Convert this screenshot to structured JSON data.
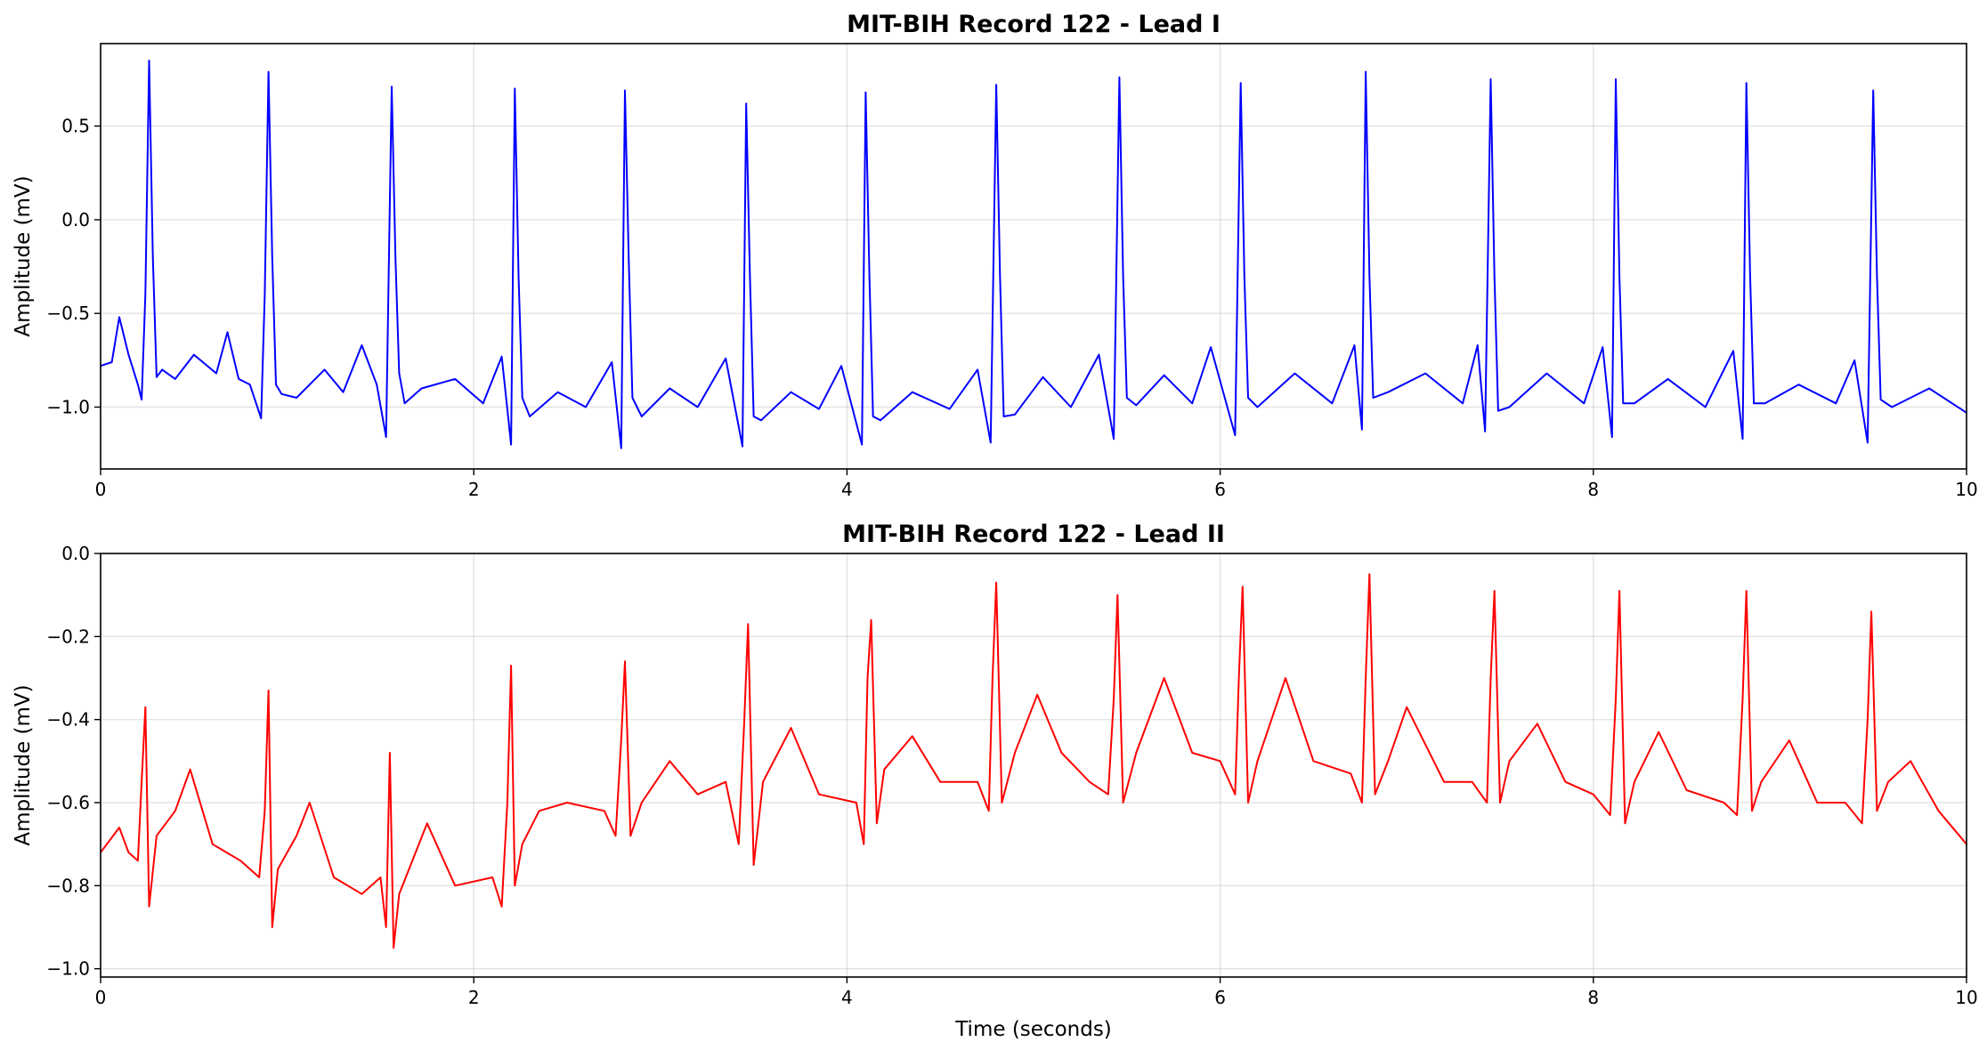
{
  "chart_data": [
    {
      "type": "line",
      "title": "MIT-BIH Record 122 - Lead I",
      "xlabel": "",
      "ylabel": "Amplitude (mV)",
      "xlim": [
        0,
        10
      ],
      "ylim": [
        -1.33,
        0.94
      ],
      "xticks": [
        0,
        2,
        4,
        6,
        8,
        10
      ],
      "xtick_labels": [
        "0",
        "2",
        "4",
        "6",
        "8",
        "10"
      ],
      "yticks": [
        -1.0,
        -0.5,
        0.0,
        0.5
      ],
      "ytick_labels": [
        "−1.0",
        "−0.5",
        "0.0",
        "0.5"
      ],
      "grid": true,
      "color": "#0000ff",
      "series": [
        {
          "x": [
            0.0,
            0.06,
            0.1,
            0.15,
            0.2,
            0.22,
            0.24,
            0.26,
            0.28,
            0.3,
            0.33,
            0.4,
            0.5,
            0.62,
            0.68,
            0.74,
            0.8,
            0.86,
            0.88,
            0.9,
            0.92,
            0.94,
            0.97,
            1.05,
            1.2,
            1.3,
            1.4,
            1.48,
            1.53,
            1.56,
            1.58,
            1.6,
            1.63,
            1.72,
            1.9,
            2.05,
            2.15,
            2.2,
            2.22,
            2.24,
            2.26,
            2.3,
            2.45,
            2.6,
            2.74,
            2.79,
            2.81,
            2.83,
            2.85,
            2.9,
            3.05,
            3.2,
            3.35,
            3.44,
            3.46,
            3.48,
            3.5,
            3.54,
            3.7,
            3.85,
            3.97,
            4.08,
            4.1,
            4.12,
            4.14,
            4.18,
            4.35,
            4.55,
            4.7,
            4.77,
            4.8,
            4.82,
            4.84,
            4.9,
            5.05,
            5.2,
            5.35,
            5.43,
            5.46,
            5.48,
            5.5,
            5.55,
            5.7,
            5.85,
            5.95,
            6.08,
            6.11,
            6.13,
            6.15,
            6.2,
            6.4,
            6.6,
            6.72,
            6.76,
            6.78,
            6.8,
            6.82,
            6.9,
            7.1,
            7.3,
            7.38,
            7.42,
            7.45,
            7.47,
            7.49,
            7.55,
            7.75,
            7.95,
            8.05,
            8.1,
            8.12,
            8.14,
            8.16,
            8.22,
            8.4,
            8.6,
            8.75,
            8.8,
            8.82,
            8.84,
            8.86,
            8.92,
            9.1,
            9.3,
            9.4,
            9.47,
            9.5,
            9.52,
            9.54,
            9.6,
            9.8,
            10.0
          ],
          "y": [
            -0.78,
            -0.76,
            -0.52,
            -0.72,
            -0.88,
            -0.96,
            -0.4,
            0.85,
            -0.2,
            -0.84,
            -0.8,
            -0.85,
            -0.72,
            -0.82,
            -0.6,
            -0.85,
            -0.88,
            -1.06,
            -0.4,
            0.79,
            -0.2,
            -0.88,
            -0.93,
            -0.95,
            -0.8,
            -0.92,
            -0.67,
            -0.88,
            -1.16,
            0.71,
            -0.2,
            -0.82,
            -0.98,
            -0.9,
            -0.85,
            -0.98,
            -0.73,
            -1.2,
            0.7,
            -0.3,
            -0.95,
            -1.05,
            -0.92,
            -1.0,
            -0.76,
            -1.22,
            0.69,
            -0.2,
            -0.95,
            -1.05,
            -0.9,
            -1.0,
            -0.74,
            -1.21,
            0.62,
            -0.3,
            -1.05,
            -1.07,
            -0.92,
            -1.01,
            -0.78,
            -1.2,
            0.68,
            -0.3,
            -1.05,
            -1.07,
            -0.92,
            -1.01,
            -0.8,
            -1.19,
            0.72,
            -0.3,
            -1.05,
            -1.04,
            -0.84,
            -1.0,
            -0.72,
            -1.17,
            0.76,
            -0.3,
            -0.95,
            -0.99,
            -0.83,
            -0.98,
            -0.68,
            -1.15,
            0.73,
            -0.3,
            -0.95,
            -1.0,
            -0.82,
            -0.98,
            -0.67,
            -1.12,
            0.79,
            -0.3,
            -0.95,
            -0.92,
            -0.82,
            -0.98,
            -0.67,
            -1.13,
            0.75,
            -0.3,
            -1.02,
            -1.0,
            -0.82,
            -0.98,
            -0.68,
            -1.16,
            0.75,
            -0.3,
            -0.98,
            -0.98,
            -0.85,
            -1.0,
            -0.7,
            -1.17,
            0.73,
            -0.3,
            -0.98,
            -0.98,
            -0.88,
            -0.98,
            -0.75,
            -1.19,
            0.69,
            -0.3,
            -0.96,
            -1.0,
            -0.9,
            -1.03
          ]
        }
      ]
    },
    {
      "type": "line",
      "title": "MIT-BIH Record 122 - Lead II",
      "xlabel": "Time (seconds)",
      "ylabel": "Amplitude (mV)",
      "xlim": [
        0,
        10
      ],
      "ylim": [
        -1.02,
        0.0
      ],
      "xticks": [
        0,
        2,
        4,
        6,
        8,
        10
      ],
      "xtick_labels": [
        "0",
        "2",
        "4",
        "6",
        "8",
        "10"
      ],
      "yticks": [
        -1.0,
        -0.8,
        -0.6,
        -0.4,
        -0.2,
        0.0
      ],
      "ytick_labels": [
        "−1.0",
        "−0.8",
        "−0.6",
        "−0.4",
        "−0.2",
        "0.0"
      ],
      "grid": true,
      "color": "#ff0000",
      "series": [
        {
          "x": [
            0.0,
            0.1,
            0.15,
            0.2,
            0.22,
            0.24,
            0.26,
            0.3,
            0.4,
            0.48,
            0.6,
            0.75,
            0.85,
            0.88,
            0.9,
            0.92,
            0.95,
            1.05,
            1.12,
            1.25,
            1.4,
            1.5,
            1.53,
            1.55,
            1.57,
            1.6,
            1.75,
            1.9,
            2.1,
            2.15,
            2.18,
            2.2,
            2.22,
            2.26,
            2.35,
            2.5,
            2.7,
            2.76,
            2.79,
            2.81,
            2.84,
            2.9,
            3.05,
            3.2,
            3.35,
            3.42,
            3.45,
            3.47,
            3.5,
            3.55,
            3.7,
            3.85,
            4.05,
            4.09,
            4.11,
            4.13,
            4.16,
            4.2,
            4.35,
            4.5,
            4.7,
            4.76,
            4.78,
            4.8,
            4.83,
            4.9,
            5.02,
            5.15,
            5.3,
            5.4,
            5.43,
            5.45,
            5.48,
            5.55,
            5.7,
            5.85,
            6.0,
            6.08,
            6.1,
            6.12,
            6.15,
            6.2,
            6.35,
            6.5,
            6.7,
            6.76,
            6.78,
            6.8,
            6.83,
            6.9,
            7.0,
            7.2,
            7.35,
            7.43,
            7.45,
            7.47,
            7.5,
            7.55,
            7.7,
            7.85,
            8.0,
            8.09,
            8.12,
            8.14,
            8.17,
            8.22,
            8.35,
            8.5,
            8.7,
            8.77,
            8.8,
            8.82,
            8.85,
            8.9,
            9.05,
            9.2,
            9.35,
            9.44,
            9.47,
            9.49,
            9.52,
            9.58,
            9.7,
            9.85,
            10.0
          ],
          "y": [
            -0.72,
            -0.66,
            -0.72,
            -0.74,
            -0.55,
            -0.37,
            -0.85,
            -0.68,
            -0.62,
            -0.52,
            -0.7,
            -0.74,
            -0.78,
            -0.62,
            -0.33,
            -0.9,
            -0.76,
            -0.68,
            -0.6,
            -0.78,
            -0.82,
            -0.78,
            -0.9,
            -0.48,
            -0.95,
            -0.82,
            -0.65,
            -0.8,
            -0.78,
            -0.85,
            -0.6,
            -0.27,
            -0.8,
            -0.7,
            -0.62,
            -0.6,
            -0.62,
            -0.68,
            -0.45,
            -0.26,
            -0.68,
            -0.6,
            -0.5,
            -0.58,
            -0.55,
            -0.7,
            -0.4,
            -0.17,
            -0.75,
            -0.55,
            -0.42,
            -0.58,
            -0.6,
            -0.7,
            -0.3,
            -0.16,
            -0.65,
            -0.52,
            -0.44,
            -0.55,
            -0.55,
            -0.62,
            -0.3,
            -0.07,
            -0.6,
            -0.48,
            -0.34,
            -0.48,
            -0.55,
            -0.58,
            -0.35,
            -0.1,
            -0.6,
            -0.48,
            -0.3,
            -0.48,
            -0.5,
            -0.58,
            -0.3,
            -0.08,
            -0.6,
            -0.5,
            -0.3,
            -0.5,
            -0.53,
            -0.6,
            -0.3,
            -0.05,
            -0.58,
            -0.5,
            -0.37,
            -0.55,
            -0.55,
            -0.6,
            -0.3,
            -0.09,
            -0.6,
            -0.5,
            -0.41,
            -0.55,
            -0.58,
            -0.63,
            -0.35,
            -0.09,
            -0.65,
            -0.55,
            -0.43,
            -0.57,
            -0.6,
            -0.63,
            -0.35,
            -0.09,
            -0.62,
            -0.55,
            -0.45,
            -0.6,
            -0.6,
            -0.65,
            -0.4,
            -0.14,
            -0.62,
            -0.55,
            -0.5,
            -0.62,
            -0.7
          ]
        }
      ]
    }
  ]
}
